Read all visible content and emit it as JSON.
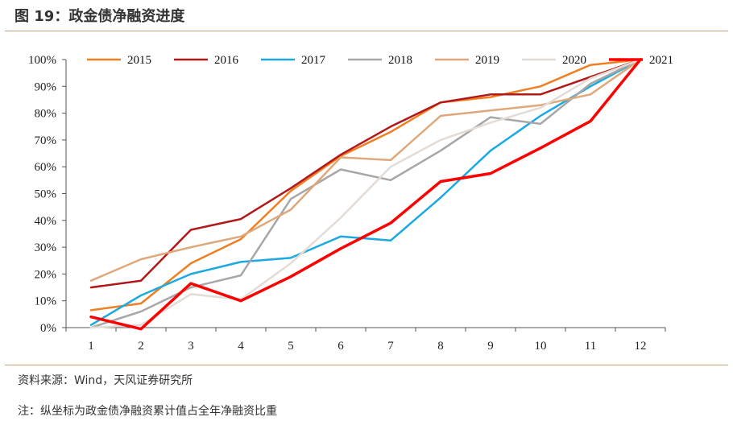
{
  "figure": {
    "title": "图 19：政金债净融资进度",
    "source": "资料来源：Wind，天风证券研究所",
    "note": "注：纵坐标为政金债净融资累计值占全年净融资比重"
  },
  "chart_data": {
    "type": "line",
    "x": [
      1,
      2,
      3,
      4,
      5,
      6,
      7,
      8,
      9,
      10,
      11,
      12
    ],
    "ylim": [
      0,
      100
    ],
    "yticks": [
      "0%",
      "10%",
      "20%",
      "30%",
      "40%",
      "50%",
      "60%",
      "70%",
      "80%",
      "90%",
      "100%"
    ],
    "xticks": [
      "1",
      "2",
      "3",
      "4",
      "5",
      "6",
      "7",
      "8",
      "9",
      "10",
      "11",
      "12"
    ],
    "grid": false,
    "legend": "top",
    "series": [
      {
        "name": "2015",
        "color": "#f07f22",
        "width": 2.5,
        "values": [
          6.5,
          9,
          24,
          33,
          51,
          64,
          73,
          84,
          86,
          90,
          98,
          100
        ]
      },
      {
        "name": "2016",
        "color": "#b21818",
        "width": 2.5,
        "values": [
          15,
          17.5,
          36.5,
          40.5,
          52,
          64.5,
          75,
          84,
          87,
          87,
          93.5,
          100
        ]
      },
      {
        "name": "2017",
        "color": "#1ba9e1",
        "width": 2.5,
        "values": [
          1,
          12,
          20,
          24.5,
          26,
          34,
          32.5,
          48.5,
          66,
          79,
          90,
          100
        ]
      },
      {
        "name": "2018",
        "color": "#a7a7a7",
        "width": 2.5,
        "values": [
          0,
          6,
          15,
          19.5,
          48,
          59,
          55,
          66,
          78.5,
          76,
          91,
          100
        ]
      },
      {
        "name": "2019",
        "color": "#dea87a",
        "width": 2.5,
        "values": [
          17.5,
          25.5,
          30,
          34,
          44,
          63.5,
          62.5,
          79,
          81,
          83,
          87,
          100
        ]
      },
      {
        "name": "2020",
        "color": "#e3dbd5",
        "width": 2.5,
        "values": [
          0,
          1,
          12.5,
          10.5,
          24,
          41,
          60,
          70,
          76.5,
          82,
          93,
          100
        ]
      },
      {
        "name": "2021",
        "color": "#ff0000",
        "width": 3.5,
        "values": [
          4,
          -0.5,
          16.5,
          10,
          19,
          29.5,
          39,
          54.5,
          57.5,
          67,
          77,
          100
        ]
      }
    ]
  }
}
